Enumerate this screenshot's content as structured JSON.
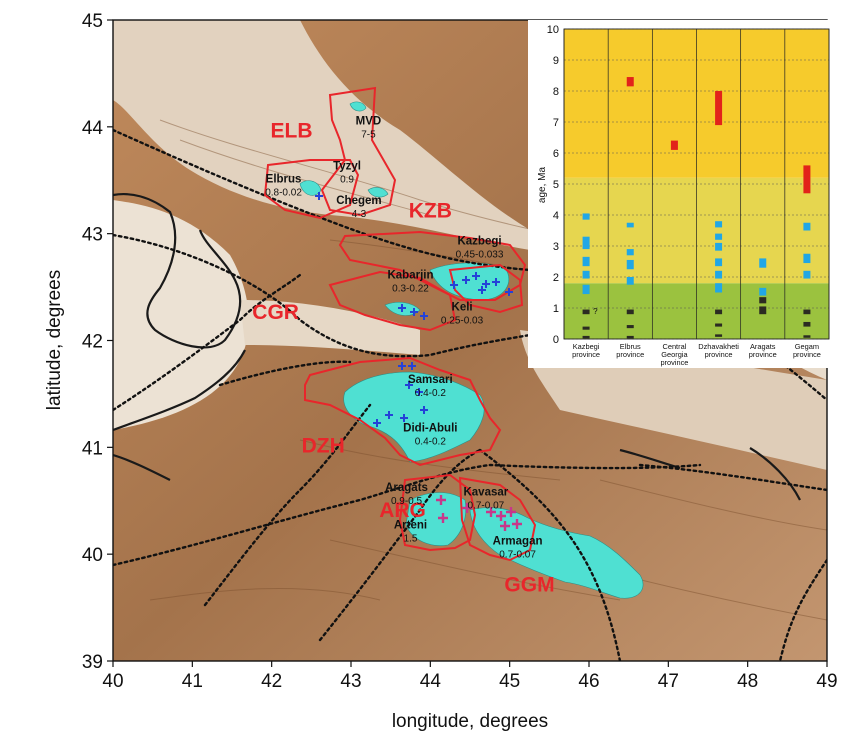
{
  "map": {
    "x_axis": {
      "label": "longitude, degrees",
      "range": [
        40,
        49
      ],
      "ticks": [
        "40",
        "41",
        "42",
        "43",
        "44",
        "45",
        "46",
        "47",
        "48",
        "49"
      ]
    },
    "y_axis": {
      "label": "latitude, degrees",
      "range": [
        39,
        45
      ],
      "ticks": [
        "39",
        "40",
        "41",
        "42",
        "43",
        "44",
        "45"
      ]
    },
    "colors": {
      "terrain": "#b7845a",
      "terrain_light": "#e9dccb",
      "volcanic": "#4fe0d2",
      "province_outline": "#e8262b",
      "province_label": "#e8262b",
      "cross_blue": "#2442d8",
      "cross_magenta": "#c8378a"
    },
    "province_codes": [
      {
        "code": "ELB",
        "lon": 42.25,
        "lat": 43.9
      },
      {
        "code": "KZB",
        "lon": 44.0,
        "lat": 43.15
      },
      {
        "code": "CGR",
        "lon": 42.05,
        "lat": 42.2
      },
      {
        "code": "DZH",
        "lon": 42.65,
        "lat": 40.95
      },
      {
        "code": "ARG",
        "lon": 43.65,
        "lat": 40.35
      },
      {
        "code": "GGM",
        "lon": 45.25,
        "lat": 39.65
      }
    ],
    "volcanoes": [
      {
        "name": "MVD",
        "age": "7-5",
        "lon": 43.22,
        "lat": 44.02
      },
      {
        "name": "Tyzyl",
        "age": "0.9",
        "lon": 42.95,
        "lat": 43.6
      },
      {
        "name": "Elbrus",
        "age": "0.8-0.02",
        "lon": 42.15,
        "lat": 43.48
      },
      {
        "name": "Chegem",
        "age": "4-3",
        "lon": 43.1,
        "lat": 43.28
      },
      {
        "name": "Kazbegi",
        "age": "0.45-0.033",
        "lon": 44.62,
        "lat": 42.9
      },
      {
        "name": "Kabarjin",
        "age": "0.3-0.22",
        "lon": 43.75,
        "lat": 42.58
      },
      {
        "name": "Keli",
        "age": "0.25-0.03",
        "lon": 44.4,
        "lat": 42.28
      },
      {
        "name": "Samsari",
        "age": "0.4-0.2",
        "lon": 44.0,
        "lat": 41.6
      },
      {
        "name": "Didi-Abuli",
        "age": "0.4-0.2",
        "lon": 44.0,
        "lat": 41.15
      },
      {
        "name": "Aragats",
        "age": "0.9-0.5",
        "lon": 43.7,
        "lat": 40.59
      },
      {
        "name": "Kavasar",
        "age": "0.7-0.07",
        "lon": 44.7,
        "lat": 40.55
      },
      {
        "name": "Arteni",
        "age": "1.5",
        "lon": 43.75,
        "lat": 40.24
      },
      {
        "name": "Armagan",
        "age": "0.7-0.07",
        "lon": 45.1,
        "lat": 40.09
      }
    ]
  },
  "inset": {
    "chart_data": {
      "type": "bar",
      "ylabel": "age, Ma",
      "xlabel": "",
      "ylim": [
        0,
        10
      ],
      "yticks": [
        "0",
        "1",
        "2",
        "3",
        "4",
        "5",
        "6",
        "7",
        "8",
        "9",
        "10"
      ],
      "background_bands": [
        {
          "from": 0,
          "to": 1.8,
          "color": "#9bc23f"
        },
        {
          "from": 1.8,
          "to": 5.2,
          "color": "#e6d64f"
        },
        {
          "from": 5.2,
          "to": 10,
          "color": "#f6cb2c"
        }
      ],
      "categories": [
        [
          "Kazbegi",
          "province"
        ],
        [
          "Elbrus",
          "province"
        ],
        [
          "Central",
          "Georgia",
          "province"
        ],
        [
          "Dzhavakheti",
          "province"
        ],
        [
          "Aragats",
          "province"
        ],
        [
          "Gegam",
          "province"
        ]
      ],
      "series": [
        {
          "color": "#e2231a",
          "bars": [
            [],
            [
              [
                8.15,
                8.45
              ]
            ],
            [
              [
                6.1,
                6.4
              ]
            ],
            [
              [
                6.9,
                8.0
              ]
            ],
            [],
            [
              [
                4.7,
                5.6
              ]
            ]
          ]
        },
        {
          "color": "#21a7e5",
          "bars": [
            [
              [
                1.45,
                1.75
              ],
              [
                1.95,
                2.2
              ],
              [
                2.35,
                2.65
              ],
              [
                2.9,
                3.3
              ],
              [
                3.85,
                4.05
              ]
            ],
            [
              [
                1.75,
                2.0
              ],
              [
                2.25,
                2.55
              ],
              [
                2.7,
                2.9
              ],
              [
                3.6,
                3.75
              ]
            ],
            [],
            [
              [
                1.5,
                1.8
              ],
              [
                1.95,
                2.2
              ],
              [
                2.35,
                2.6
              ],
              [
                2.85,
                3.1
              ],
              [
                3.2,
                3.4
              ],
              [
                3.6,
                3.8
              ]
            ],
            [
              [
                1.4,
                1.65
              ],
              [
                2.3,
                2.6
              ]
            ],
            [
              [
                1.95,
                2.2
              ],
              [
                2.45,
                2.75
              ],
              [
                3.5,
                3.75
              ]
            ]
          ]
        },
        {
          "color": "#2b2b22",
          "bars": [
            [
              [
                0.05,
                0.1
              ],
              [
                0.3,
                0.4
              ],
              [
                0.8,
                0.95
              ]
            ],
            [
              [
                0.05,
                0.1
              ],
              [
                0.35,
                0.45
              ],
              [
                0.8,
                0.95
              ]
            ],
            [],
            [
              [
                0.1,
                0.15
              ],
              [
                0.4,
                0.5
              ],
              [
                0.8,
                0.95
              ]
            ],
            [
              [
                0.8,
                1.05
              ],
              [
                1.15,
                1.35
              ]
            ],
            [
              [
                0.05,
                0.12
              ],
              [
                0.4,
                0.55
              ],
              [
                0.8,
                0.95
              ]
            ]
          ]
        }
      ],
      "annotations": [
        {
          "text": "?",
          "category_index": 0,
          "y": 0.9
        }
      ]
    }
  }
}
